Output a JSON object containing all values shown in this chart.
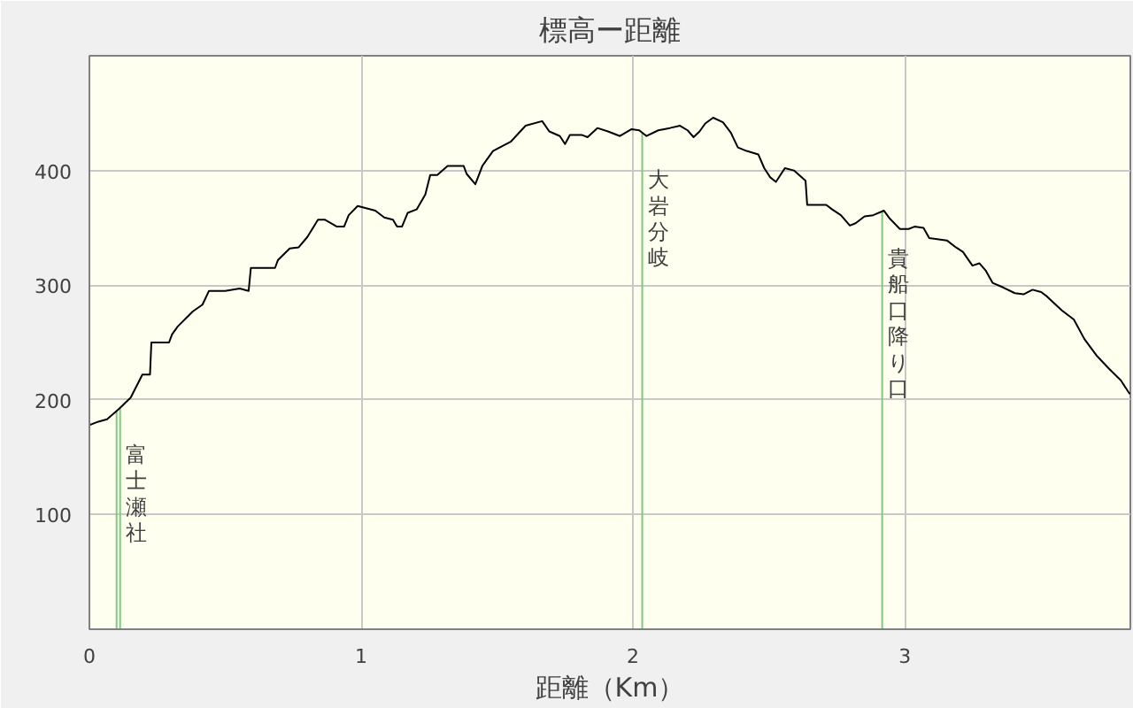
{
  "chart_data": {
    "type": "line",
    "title": "標高ー距離",
    "xlabel": "距離（Km）",
    "x": [
      0,
      0.033,
      0.065,
      0.108,
      0.13,
      0.152,
      0.195,
      0.223,
      0.228,
      0.293,
      0.304,
      0.325,
      0.38,
      0.416,
      0.44,
      0.499,
      0.553,
      0.586,
      0.594,
      0.683,
      0.694,
      0.737,
      0.77,
      0.802,
      0.841,
      0.867,
      0.911,
      0.937,
      0.954,
      0.987,
      1.052,
      1.085,
      1.117,
      1.132,
      1.15,
      1.171,
      1.204,
      1.236,
      1.254,
      1.28,
      1.318,
      1.377,
      1.388,
      1.42,
      1.446,
      1.485,
      1.55,
      1.605,
      1.666,
      1.692,
      1.731,
      1.75,
      1.768,
      1.811,
      1.833,
      1.869,
      1.908,
      1.952,
      1.995,
      2.023,
      2.05,
      2.093,
      2.136,
      2.173,
      2.201,
      2.223,
      2.245,
      2.266,
      2.295,
      2.331,
      2.36,
      2.386,
      2.418,
      2.461,
      2.483,
      2.505,
      2.526,
      2.559,
      2.592,
      2.635,
      2.641,
      2.711,
      2.733,
      2.765,
      2.798,
      2.819,
      2.852,
      2.884,
      2.923,
      2.945,
      2.982,
      3.014,
      3.036,
      3.069,
      3.09,
      3.155,
      3.188,
      3.214,
      3.249,
      3.275,
      3.297,
      3.323,
      3.362,
      3.405,
      3.437,
      3.47,
      3.502,
      3.524,
      3.578,
      3.622,
      3.661,
      3.708,
      3.752,
      3.795,
      3.828
    ],
    "series": [
      {
        "color": "#000000",
        "values": [
          178,
          181,
          183,
          192,
          197,
          202,
          222,
          222,
          250,
          250,
          257,
          264,
          277,
          283,
          295,
          295,
          297,
          295,
          315,
          315,
          322,
          332,
          333,
          342,
          357,
          357,
          351,
          351,
          361,
          369,
          365,
          359,
          357,
          351,
          351,
          363,
          366,
          379,
          396,
          396,
          404,
          404,
          397,
          388,
          404,
          417,
          425,
          439,
          443,
          434,
          430,
          423,
          431,
          431,
          429,
          437,
          434,
          430,
          436,
          435,
          430,
          435,
          437,
          439,
          435,
          429,
          434,
          441,
          446,
          442,
          433,
          420,
          417,
          414,
          402,
          394,
          390,
          402,
          400,
          391,
          370,
          370,
          366,
          361,
          352,
          354,
          360,
          361,
          365,
          358,
          349,
          349,
          351,
          350,
          341,
          339,
          333,
          329,
          317,
          319,
          313,
          302,
          298,
          293,
          292,
          296,
          294,
          290,
          278,
          270,
          253,
          238,
          227,
          217,
          205
        ]
      }
    ],
    "xlim": [
      0,
      3.83
    ],
    "ylim": [
      0,
      500
    ],
    "xticks": [
      0,
      1,
      2,
      3
    ],
    "yticks": [
      100,
      200,
      300,
      400
    ],
    "grid": true,
    "ref_lines": [
      {
        "axis": "x",
        "value": 0.1,
        "color": "#80c880"
      },
      {
        "axis": "x",
        "value": 0.113,
        "label": "富士瀬社",
        "color": "#80c880"
      },
      {
        "axis": "x",
        "value": 2.034,
        "label": "大岩分岐",
        "color": "#80c880"
      },
      {
        "axis": "x",
        "value": 2.917,
        "label": "貴船口降り口",
        "color": "#80c880"
      }
    ]
  }
}
